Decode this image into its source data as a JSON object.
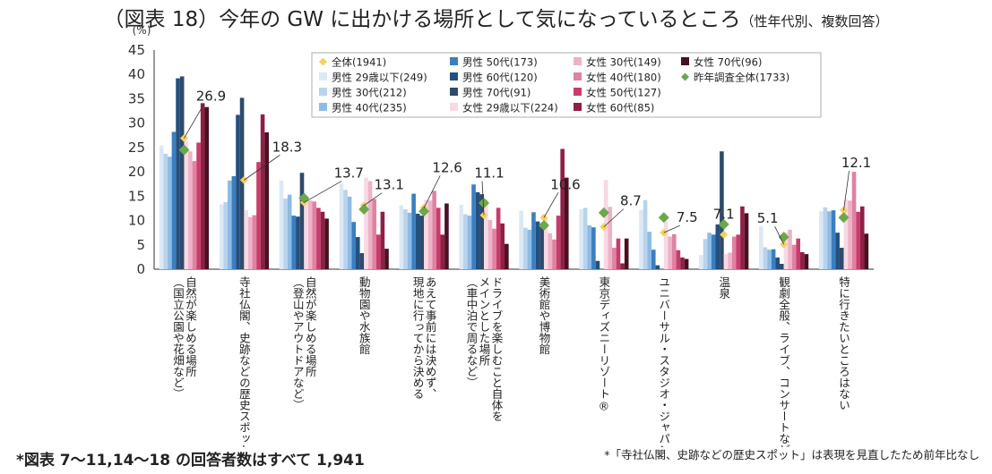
{
  "title": "（図表 18）今年の GW に出かける場所として気になっているところ",
  "title_sub": "（性年代別、複数回答）",
  "note_left": "*図表 7～11,14～18 の回答者数はすべて 1,941",
  "note_right": "*「寺社仏閣、史跡などの歴史スポット」は表現を見直したため前年比なし",
  "chart_data": {
    "type": "bar",
    "ylabel": "(%)",
    "ylim": [
      0,
      45
    ],
    "yticks": [
      0,
      5,
      10,
      15,
      20,
      25,
      30,
      35,
      40,
      45
    ],
    "categories": [
      "自然が楽しめる場所（国立公園や花畑など）",
      "寺社仏閣、史跡などの歴史スポット",
      "自然が楽しめる場所（登山やアウトドアなど）",
      "動物園や水族館",
      "あえて事前には決めず、現地に行ってから決める",
      "ドライブを楽しむこと自体をメインとした場所（車中泊で周るなど）",
      "美術館や博物館",
      "東京ディズニーリゾート®",
      "ユニバーサル・スタジオ・ジャパン",
      "温泉",
      "観劇全般、ライブ、コンサートなど",
      "特に行きたいところはない"
    ],
    "total": {
      "name": "全体(1941)",
      "color": "#F5D060",
      "values": [
        26.9,
        18.3,
        13.7,
        13.1,
        12.6,
        11.1,
        10.6,
        8.7,
        7.5,
        7.1,
        5.1,
        12.1
      ]
    },
    "previous": {
      "name": "昨年調査全体(1733)",
      "color": "#6BA84A",
      "values": [
        24.5,
        null,
        14.6,
        12.3,
        11.9,
        13.6,
        9.0,
        11.6,
        10.6,
        9.2,
        6.6,
        10.6
      ]
    },
    "series": [
      {
        "name": "男性 29歳以下(249)",
        "color": "#DCE8F5",
        "values": [
          25.4,
          13.3,
          18.2,
          17.6,
          13.1,
          13.2,
          12.0,
          12.3,
          12.2,
          2.9,
          8.8,
          11.9
        ]
      },
      {
        "name": "男性 30代(212)",
        "color": "#B9D3EC",
        "values": [
          23.7,
          13.8,
          14.5,
          16.3,
          12.3,
          11.3,
          8.5,
          12.6,
          14.2,
          6.2,
          4.5,
          12.7
        ]
      },
      {
        "name": "男性 40代(235)",
        "color": "#8EBBE4",
        "values": [
          23.1,
          18.2,
          15.3,
          14.9,
          11.6,
          11.0,
          8.1,
          9.0,
          7.7,
          7.5,
          4.0,
          11.9
        ]
      },
      {
        "name": "男性 50代(173)",
        "color": "#3A7FC0",
        "values": [
          28.2,
          19.1,
          11.0,
          9.7,
          15.5,
          17.4,
          11.7,
          8.6,
          4.0,
          7.1,
          4.1,
          12.1
        ]
      },
      {
        "name": "男性 60代(120)",
        "color": "#24507F",
        "values": [
          39.2,
          31.7,
          10.8,
          6.6,
          11.4,
          15.8,
          9.8,
          1.7,
          0.8,
          9.2,
          2.4,
          7.5
        ]
      },
      {
        "name": "男性 70代(91)",
        "color": "#2F4B6B",
        "values": [
          39.6,
          35.2,
          19.8,
          3.3,
          11.0,
          15.4,
          8.8,
          0.0,
          0.0,
          24.2,
          1.1,
          4.4
        ]
      },
      {
        "name": "女性 29歳以下(224)",
        "color": "#F7D9E4",
        "values": [
          26.3,
          12.1,
          14.7,
          18.8,
          14.3,
          14.3,
          10.3,
          18.3,
          9.8,
          3.1,
          7.6,
          14.3
        ]
      },
      {
        "name": "女性 30代(149)",
        "color": "#EEB2C8",
        "values": [
          24.2,
          10.7,
          14.1,
          18.1,
          14.1,
          10.1,
          7.4,
          12.8,
          6.7,
          3.4,
          8.1,
          14.1
        ]
      },
      {
        "name": "女性 40代(180)",
        "color": "#E082A2",
        "values": [
          22.2,
          11.1,
          13.9,
          14.4,
          16.1,
          8.3,
          6.1,
          4.4,
          7.2,
          6.7,
          5.0,
          20.0
        ]
      },
      {
        "name": "女性 50代(127)",
        "color": "#C83C6B",
        "values": [
          26.0,
          22.0,
          12.6,
          7.1,
          12.6,
          12.6,
          11.0,
          6.3,
          3.9,
          7.1,
          6.3,
          11.8
        ]
      },
      {
        "name": "女性 60代(85)",
        "color": "#8E1F45",
        "values": [
          34.1,
          31.8,
          11.8,
          11.8,
          7.1,
          9.4,
          24.7,
          1.2,
          2.4,
          12.9,
          3.5,
          12.9
        ]
      },
      {
        "name": "女性 70代(96)",
        "color": "#4A1020",
        "values": [
          33.3,
          28.1,
          10.4,
          4.2,
          13.5,
          5.2,
          18.8,
          6.3,
          2.1,
          11.5,
          3.1,
          7.3
        ]
      }
    ],
    "legend": {
      "columns": [
        [
          "全体(1941)",
          "男性 29歳以下(249)",
          "男性 30代(212)",
          "男性 40代(235)"
        ],
        [
          "男性 50代(173)",
          "男性 60代(120)",
          "男性 70代(91)",
          "女性 29歳以下(224)"
        ],
        [
          "女性 30代(149)",
          "女性 40代(180)",
          "女性 50代(127)",
          "女性 60代(85)"
        ],
        [
          "女性 70代(96)",
          "昨年調査全体(1733)"
        ]
      ]
    }
  }
}
